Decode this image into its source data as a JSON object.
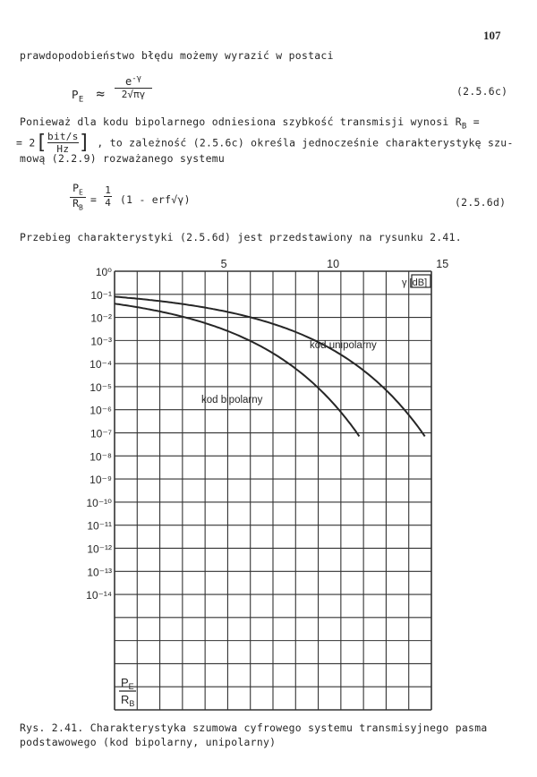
{
  "page_number": "107",
  "line1": "prawdopodobieństwo błędu możemy wyrazić w postaci",
  "eq1": {
    "lhs": "P",
    "lhs_sub": "E",
    "approx": "≈",
    "numerator": "e",
    "numerator_exp": "-γ",
    "denominator": "2√πγ",
    "number": "(2.5.6c)"
  },
  "para2": {
    "line1": "Ponieważ dla kodu bipolarnego odniesiona szybkość transmisji wynosi R",
    "line1_sub": "B",
    "line1_end": "=",
    "line2_prefix": "= 2",
    "unit_num": "bit/s",
    "unit_den": "Hz",
    "line2_rest": ", to zależność (2.5.6c) określa jednocześnie charakterystykę szu-",
    "line3": "mową (2.2.9) rozważanego systemu"
  },
  "eq2": {
    "lhs_num": "P",
    "lhs_num_sub": "E",
    "lhs_den": "R",
    "lhs_den_sub": "B",
    "equals": "=",
    "coef_num": "1",
    "coef_den": "4",
    "rhs": "(1 - erf√γ)",
    "number": "(2.5.6d)"
  },
  "line_intro": "Przebieg charakterystyki (2.5.6d) jest przedstawiony na rysunku 2.41.",
  "figure": {
    "x_ticks": [
      "5",
      "10",
      "15"
    ],
    "x_unit": "γ [dB]",
    "y_ticks": [
      "10⁰",
      "10⁻¹",
      "10⁻²",
      "10⁻³",
      "10⁻⁴",
      "10⁻⁵",
      "10⁻⁶",
      "10⁻⁷",
      "10⁻⁸",
      "10⁻⁹",
      "10⁻¹⁰",
      "10⁻¹¹",
      "10⁻¹²",
      "10⁻¹³",
      "10⁻¹⁴"
    ],
    "y_label_num": "P",
    "y_label_num_sub": "E",
    "y_label_den": "R",
    "y_label_den_sub": "B",
    "series": [
      {
        "name": "kod unipolarny"
      },
      {
        "name": "kod bipolarny"
      }
    ]
  },
  "caption_line1": "Rys. 2.41. Charakterystyka szumowa cyfrowego systemu transmisyjnego pasma",
  "caption_line2": "podstawowego (kod bipolarny, unipolarny)"
}
